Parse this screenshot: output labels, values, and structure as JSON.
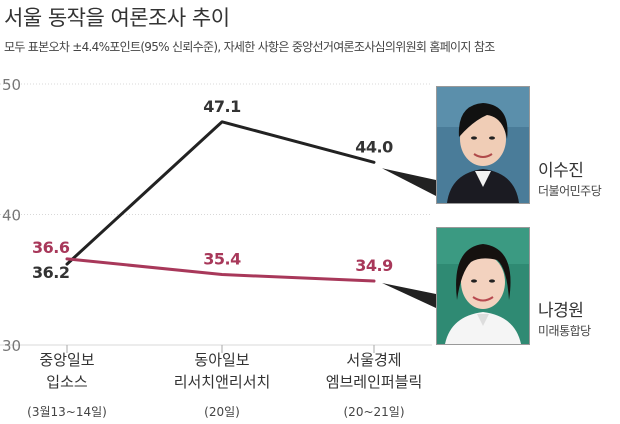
{
  "title": "서울 동작을 여론조사 추이",
  "subtitle": "모두 표본오차 ±4.4%포인트(95% 신뢰수준), 자세한 사항은 중앙선거여론조사심의위원회 홈페이지 참조",
  "chart_data": {
    "type": "line",
    "title": "서울 동작을 여론조사 추이",
    "ylim": [
      30,
      50
    ],
    "yticks": [
      "50",
      "40",
      "30"
    ],
    "categories": [
      {
        "line1": "중앙일보",
        "line2": "입소스",
        "date": "(3월13~14일)"
      },
      {
        "line1": "동아일보",
        "line2": "리서치앤리서치",
        "date": "(20일)"
      },
      {
        "line1": "서울경제",
        "line2": "엠브레인퍼블릭",
        "date": "(20~21일)"
      }
    ],
    "series": [
      {
        "name": "이수진",
        "party": "더불어민주당",
        "color": "#222222",
        "values": [
          36.2,
          47.1,
          44.0
        ],
        "labels": [
          "36.2",
          "47.1",
          "44.0"
        ]
      },
      {
        "name": "나경원",
        "party": "미래통합당",
        "color": "#a8385a",
        "values": [
          36.6,
          35.4,
          34.9
        ],
        "labels": [
          "36.6",
          "35.4",
          "34.9"
        ]
      }
    ]
  },
  "candidates": [
    {
      "name": "이수진",
      "party": "더불어민주당"
    },
    {
      "name": "나경원",
      "party": "미래통합당"
    }
  ]
}
